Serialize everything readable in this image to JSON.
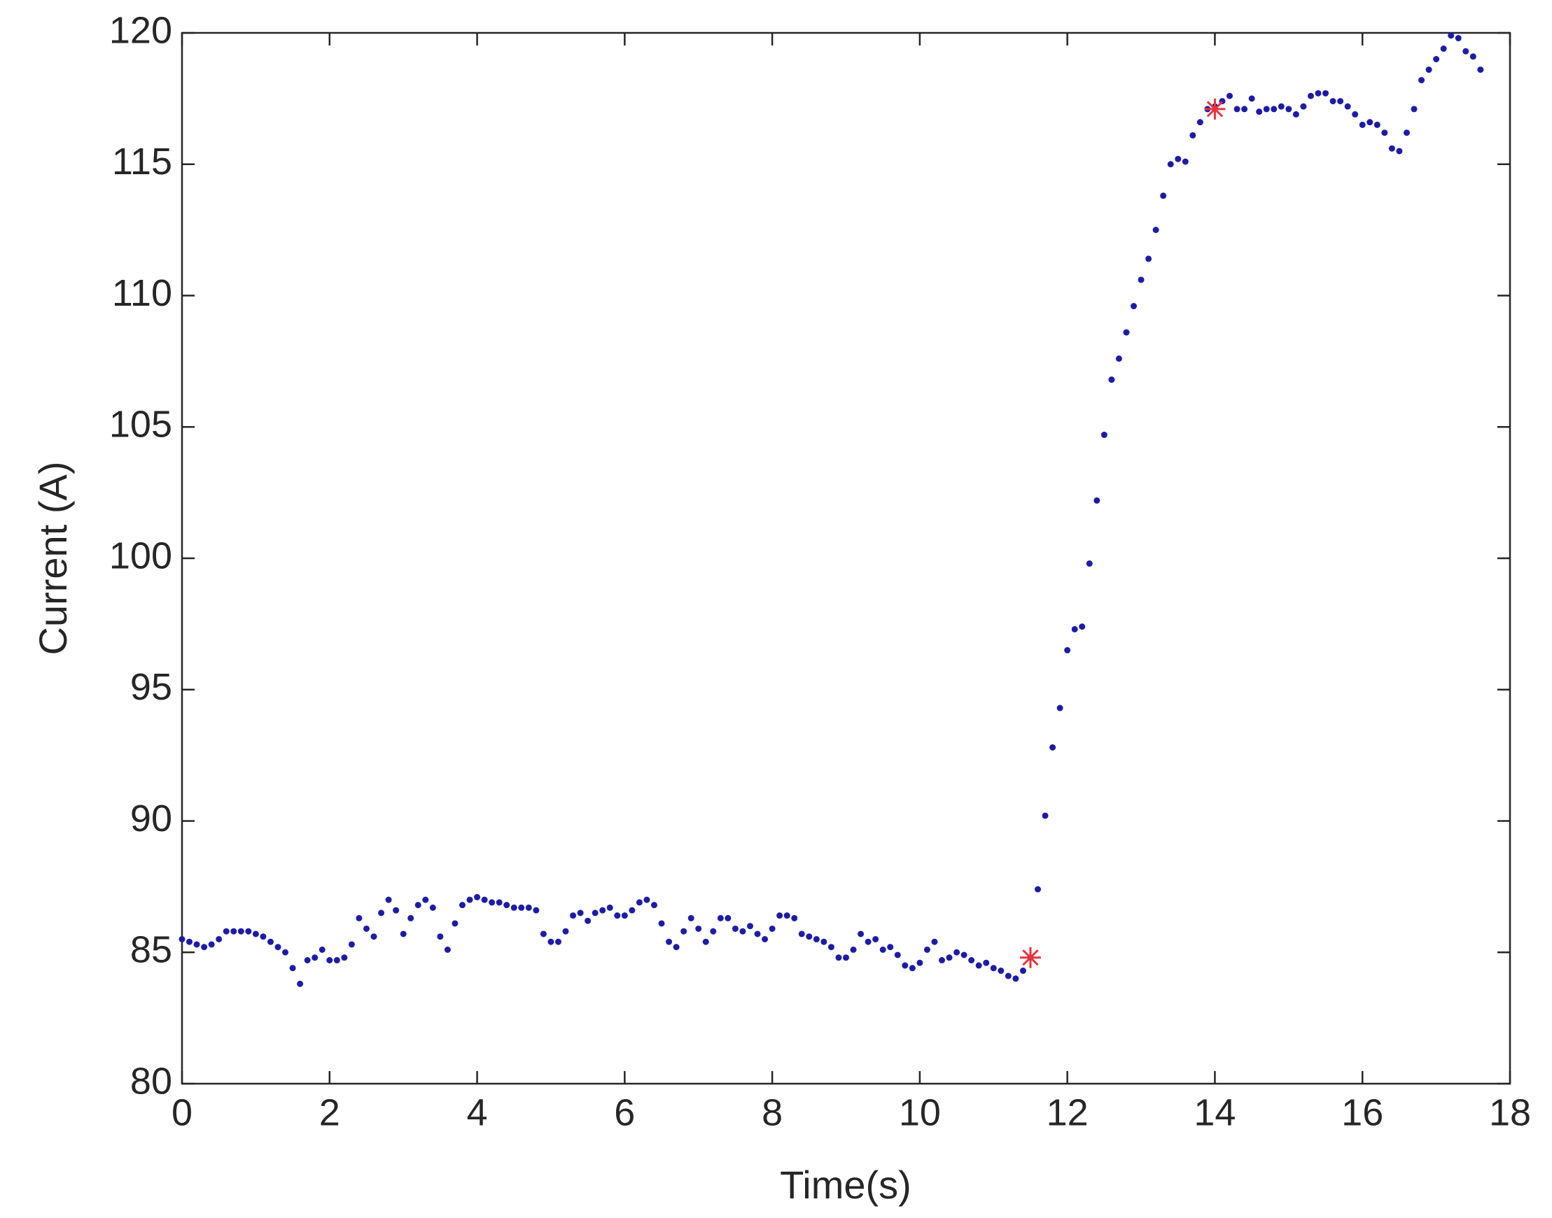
{
  "chart_data": {
    "type": "scatter",
    "xlabel": "Time(s)",
    "ylabel": "Current (A)",
    "xlim": [
      0,
      18
    ],
    "ylim": [
      80,
      120
    ],
    "xticks": [
      0,
      2,
      4,
      6,
      8,
      10,
      12,
      14,
      16,
      18
    ],
    "yticks": [
      80,
      85,
      90,
      95,
      100,
      105,
      110,
      115,
      120
    ],
    "grid": false,
    "series": [
      {
        "color": "#1c1ca8",
        "marker": "dot",
        "x": [
          0.0,
          0.1,
          0.2,
          0.3,
          0.4,
          0.5,
          0.6,
          0.7,
          0.8,
          0.9,
          1.0,
          1.1,
          1.2,
          1.3,
          1.4,
          1.5,
          1.6,
          1.7,
          1.8,
          1.9,
          2.0,
          2.1,
          2.2,
          2.3,
          2.4,
          2.5,
          2.6,
          2.7,
          2.8,
          2.9,
          3.0,
          3.1,
          3.2,
          3.3,
          3.4,
          3.5,
          3.6,
          3.7,
          3.8,
          3.9,
          4.0,
          4.1,
          4.2,
          4.3,
          4.4,
          4.5,
          4.6,
          4.7,
          4.8,
          4.9,
          5.0,
          5.1,
          5.2,
          5.3,
          5.4,
          5.5,
          5.6,
          5.7,
          5.8,
          5.9,
          6.0,
          6.1,
          6.2,
          6.3,
          6.4,
          6.5,
          6.6,
          6.7,
          6.8,
          6.9,
          7.0,
          7.1,
          7.2,
          7.3,
          7.4,
          7.5,
          7.6,
          7.7,
          7.8,
          7.9,
          8.0,
          8.1,
          8.2,
          8.3,
          8.4,
          8.5,
          8.6,
          8.7,
          8.8,
          8.9,
          9.0,
          9.1,
          9.2,
          9.3,
          9.4,
          9.5,
          9.6,
          9.7,
          9.8,
          9.9,
          10.0,
          10.1,
          10.2,
          10.3,
          10.4,
          10.5,
          10.6,
          10.7,
          10.8,
          10.9,
          11.0,
          11.1,
          11.2,
          11.3,
          11.4,
          11.5,
          11.6,
          11.7,
          11.8,
          11.9,
          12.0,
          12.1,
          12.2,
          12.3,
          12.4,
          12.5,
          12.6,
          12.7,
          12.8,
          12.9,
          13.0,
          13.1,
          13.2,
          13.3,
          13.4,
          13.5,
          13.6,
          13.7,
          13.8,
          13.9,
          14.0,
          14.1,
          14.2,
          14.3,
          14.4,
          14.5,
          14.6,
          14.7,
          14.8,
          14.9,
          15.0,
          15.1,
          15.2,
          15.3,
          15.4,
          15.5,
          15.6,
          15.7,
          15.8,
          15.9,
          16.0,
          16.1,
          16.2,
          16.3,
          16.4,
          16.5,
          16.6,
          16.7,
          16.8,
          16.9,
          17.0,
          17.1,
          17.2,
          17.3,
          17.4,
          17.5,
          17.6
        ],
        "values": [
          85.5,
          85.4,
          85.3,
          85.2,
          85.3,
          85.5,
          85.8,
          85.8,
          85.8,
          85.8,
          85.7,
          85.6,
          85.4,
          85.2,
          85.0,
          84.4,
          83.8,
          84.7,
          84.8,
          85.1,
          84.7,
          84.7,
          84.8,
          85.3,
          86.3,
          85.9,
          85.6,
          86.5,
          87.0,
          86.6,
          85.7,
          86.3,
          86.8,
          87.0,
          86.7,
          85.6,
          85.1,
          86.1,
          86.8,
          87.0,
          87.1,
          87.0,
          86.9,
          86.9,
          86.8,
          86.7,
          86.7,
          86.7,
          86.6,
          85.7,
          85.4,
          85.4,
          85.8,
          86.4,
          86.5,
          86.2,
          86.5,
          86.6,
          86.7,
          86.4,
          86.4,
          86.6,
          86.9,
          87.0,
          86.8,
          86.1,
          85.4,
          85.2,
          85.8,
          86.3,
          85.9,
          85.4,
          85.8,
          86.3,
          86.3,
          85.9,
          85.8,
          86.0,
          85.7,
          85.5,
          85.9,
          86.4,
          86.4,
          86.3,
          85.7,
          85.6,
          85.5,
          85.4,
          85.2,
          84.8,
          84.8,
          85.1,
          85.7,
          85.4,
          85.5,
          85.1,
          85.2,
          84.9,
          84.5,
          84.4,
          84.6,
          85.1,
          85.4,
          84.7,
          84.8,
          85.0,
          84.9,
          84.7,
          84.5,
          84.6,
          84.4,
          84.3,
          84.1,
          84.0,
          84.3,
          84.8,
          87.4,
          90.2,
          92.8,
          94.3,
          96.5,
          97.3,
          97.4,
          99.8,
          102.2,
          104.7,
          106.8,
          107.6,
          108.6,
          109.6,
          110.6,
          111.4,
          112.5,
          113.8,
          115.0,
          115.2,
          115.1,
          116.1,
          116.6,
          117.1,
          117.2,
          117.4,
          117.6,
          117.1,
          117.1,
          117.5,
          117.0,
          117.1,
          117.1,
          117.2,
          117.1,
          116.9,
          117.2,
          117.6,
          117.7,
          117.7,
          117.4,
          117.4,
          117.2,
          116.9,
          116.5,
          116.6,
          116.5,
          116.2,
          115.6,
          115.5,
          116.2,
          117.1,
          118.2,
          118.6,
          119.0,
          119.4,
          119.9,
          119.8,
          119.3,
          119.1,
          118.6
        ]
      },
      {
        "color": "#e8333f",
        "marker": "star",
        "x": [
          11.5,
          14.0
        ],
        "values": [
          84.8,
          117.1
        ]
      }
    ]
  }
}
